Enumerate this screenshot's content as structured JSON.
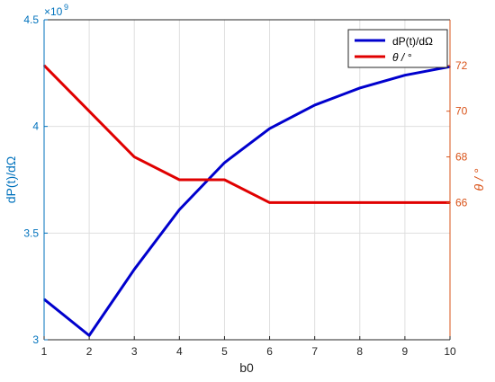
{
  "chart_data": {
    "type": "line",
    "title": "",
    "x": [
      1,
      2,
      3,
      4,
      5,
      6,
      7,
      8,
      9,
      10
    ],
    "xlabel": "b0",
    "xlim": [
      1,
      10
    ],
    "xticks": [
      "1",
      "2",
      "3",
      "4",
      "5",
      "6",
      "7",
      "8",
      "9",
      "10"
    ],
    "ylabel_left": "dP(t)/dΩ",
    "ylim_left": [
      3000000000.0,
      4500000000.0
    ],
    "yticks_left": [
      "3",
      "3.5",
      "4",
      "4.5"
    ],
    "yticks_left_values": [
      3,
      3.5,
      4,
      4.5
    ],
    "y_left_exponent": "×10",
    "y_left_exponent_power": "9",
    "ylabel_right": "θ / °",
    "ylim_right": [
      60,
      74
    ],
    "yticks_right": [
      "66",
      "68",
      "70",
      "72"
    ],
    "yticks_right_values": [
      66,
      68,
      70,
      72
    ],
    "grid": true,
    "legend_position": "top-right",
    "series": [
      {
        "name": "dP(t)/dΩ",
        "axis": "left",
        "color": "#0000CD",
        "values": [
          3190000000.0,
          3020000000.0,
          3330000000.0,
          3610000000.0,
          3830000000.0,
          3990000000.0,
          4100000000.0,
          4180000000.0,
          4240000000.0,
          4280000000.0
        ]
      },
      {
        "name": "θ / °",
        "axis": "right",
        "color": "#E00000",
        "values": [
          72,
          70,
          68,
          67,
          67,
          66,
          66,
          66,
          66,
          66
        ]
      }
    ],
    "colors": {
      "left_axis": "#0072BD",
      "right_axis": "#D95319",
      "grid": "#DFDFDF",
      "axes_line": "#262626"
    }
  }
}
